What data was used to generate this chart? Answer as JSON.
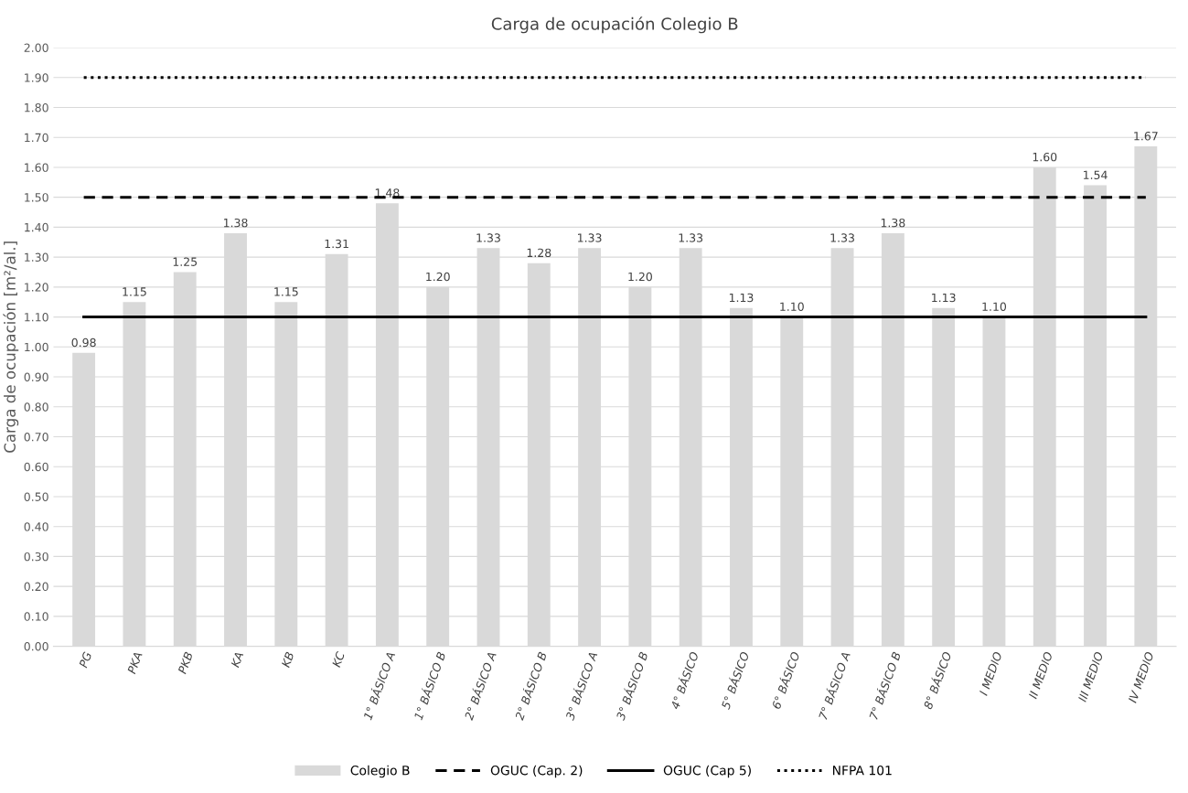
{
  "chart_data": {
    "type": "bar",
    "title": "Carga de ocupación Colegio B",
    "ylabel": "Carga de ocupación [m²/al.]",
    "categories": [
      "PG",
      "PKA",
      "PKB",
      "KA",
      "KB",
      "KC",
      "1° BÁSICO A",
      "1° BÁSICO B",
      "2° BÁSICO A",
      "2° BÁSICO B",
      "3° BÁSICO A",
      "3° BÁSICO B",
      "4° BÁSICO",
      "5° BÁSICO",
      "6° BÁSICO",
      "7° BÁSICO A",
      "7° BÁSICO B",
      "8° BÁSICO",
      "I MEDIO",
      "II MEDIO",
      "III MEDIO",
      "IV MEDIO"
    ],
    "series": [
      {
        "name": "Colegio B",
        "color": "#d9d9d9",
        "values": [
          0.98,
          1.15,
          1.25,
          1.38,
          1.15,
          1.31,
          1.48,
          1.2,
          1.33,
          1.28,
          1.33,
          1.2,
          1.33,
          1.13,
          1.1,
          1.33,
          1.38,
          1.13,
          1.1,
          1.6,
          1.54,
          1.67
        ],
        "value_labels": [
          "0.98",
          "1.15",
          "1.25",
          "1.38",
          "1.15",
          "1.31",
          "1.48",
          "1.20",
          "1.33",
          "1.28",
          "1.33",
          "1.20",
          "1.33",
          "1.13",
          "1.10",
          "1.33",
          "1.38",
          "1.13",
          "1.10",
          "1.60",
          "1.54",
          "1.67"
        ]
      },
      {
        "name": "OGUC (Cap. 2)",
        "type": "line",
        "color": "#000000",
        "line_style": "dashed",
        "values": [
          1.5,
          1.5,
          1.5,
          1.5,
          1.5,
          1.5,
          1.5,
          1.5,
          1.5,
          1.5,
          1.5,
          1.5,
          1.5,
          1.5,
          1.5,
          1.5,
          1.5,
          1.5,
          1.5,
          1.5,
          1.5,
          1.5
        ]
      },
      {
        "name": "OGUC (Cap 5)",
        "type": "line",
        "color": "#000000",
        "line_style": "solid",
        "values": [
          1.1,
          1.1,
          1.1,
          1.1,
          1.1,
          1.1,
          1.1,
          1.1,
          1.1,
          1.1,
          1.1,
          1.1,
          1.1,
          1.1,
          1.1,
          1.1,
          1.1,
          1.1,
          1.1,
          1.1,
          1.1,
          1.1
        ]
      },
      {
        "name": "NFPA 101",
        "type": "line",
        "color": "#000000",
        "line_style": "dotted",
        "values": [
          1.9,
          1.9,
          1.9,
          1.9,
          1.9,
          1.9,
          1.9,
          1.9,
          1.9,
          1.9,
          1.9,
          1.9,
          1.9,
          1.9,
          1.9,
          1.9,
          1.9,
          1.9,
          1.9,
          1.9,
          1.9,
          1.9
        ]
      }
    ],
    "ylim": [
      0,
      2
    ],
    "yticks": [
      {
        "value": 0,
        "label": "0.00"
      },
      {
        "value": 0.1,
        "label": "0.10"
      },
      {
        "value": 0.2,
        "label": "0.20"
      },
      {
        "value": 0.3,
        "label": "0.30"
      },
      {
        "value": 0.4,
        "label": "0.40"
      },
      {
        "value": 0.5,
        "label": "0.50"
      },
      {
        "value": 0.6,
        "label": "0.60"
      },
      {
        "value": 0.7,
        "label": "0.70"
      },
      {
        "value": 0.8,
        "label": "0.80"
      },
      {
        "value": 0.9,
        "label": "0.90"
      },
      {
        "value": 1.0,
        "label": "1.00"
      },
      {
        "value": 1.1,
        "label": "1.10"
      },
      {
        "value": 1.2,
        "label": "1.20"
      },
      {
        "value": 1.3,
        "label": "1.30"
      },
      {
        "value": 1.4,
        "label": "1.40"
      },
      {
        "value": 1.5,
        "label": "1.50"
      },
      {
        "value": 1.6,
        "label": "1.60"
      },
      {
        "value": 1.7,
        "label": "1.70"
      },
      {
        "value": 1.8,
        "label": "1.80"
      },
      {
        "value": 1.9,
        "label": "1.90"
      },
      {
        "value": 2.0,
        "label": "2.00"
      }
    ],
    "grid": "y",
    "legend": "bottom"
  }
}
